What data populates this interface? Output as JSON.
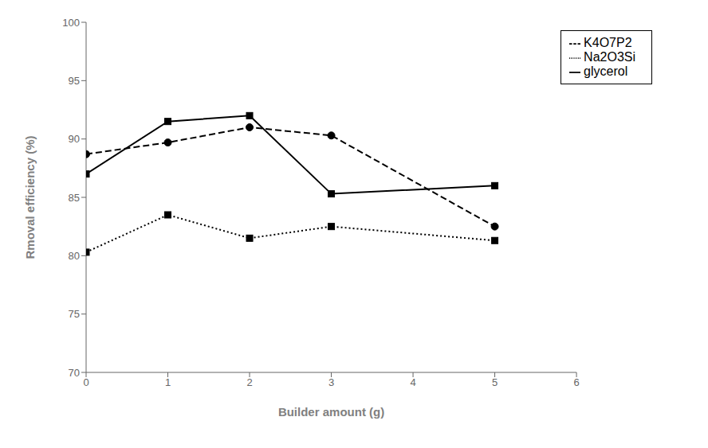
{
  "chart_data": {
    "type": "line",
    "x": [
      0,
      1,
      2,
      3,
      5
    ],
    "series": [
      {
        "name": "glycerol",
        "color": "#000000",
        "values": [
          87.0,
          91.5,
          92.0,
          85.3,
          86.0
        ],
        "line_style": "solid",
        "marker": "square"
      },
      {
        "name": "Na2O3Si",
        "color": "#000000",
        "values": [
          80.3,
          83.5,
          81.5,
          82.5,
          81.3
        ],
        "line_style": "dotted",
        "marker": "square"
      },
      {
        "name": "K4O7P2",
        "color": "#000000",
        "values": [
          88.7,
          89.7,
          91.0,
          90.3,
          82.5
        ],
        "line_style": "dashed",
        "marker": "circle"
      }
    ],
    "xlabel": "Builder amount (g)",
    "ylabel": "Rmoval efficiency (%)",
    "xlim": [
      0,
      6
    ],
    "ylim": [
      70,
      100
    ],
    "xticks": [
      0,
      1,
      2,
      3,
      4,
      5,
      6
    ],
    "yticks": [
      70,
      75,
      80,
      85,
      90,
      95,
      100
    ],
    "grid": false,
    "legend": "upper right"
  }
}
